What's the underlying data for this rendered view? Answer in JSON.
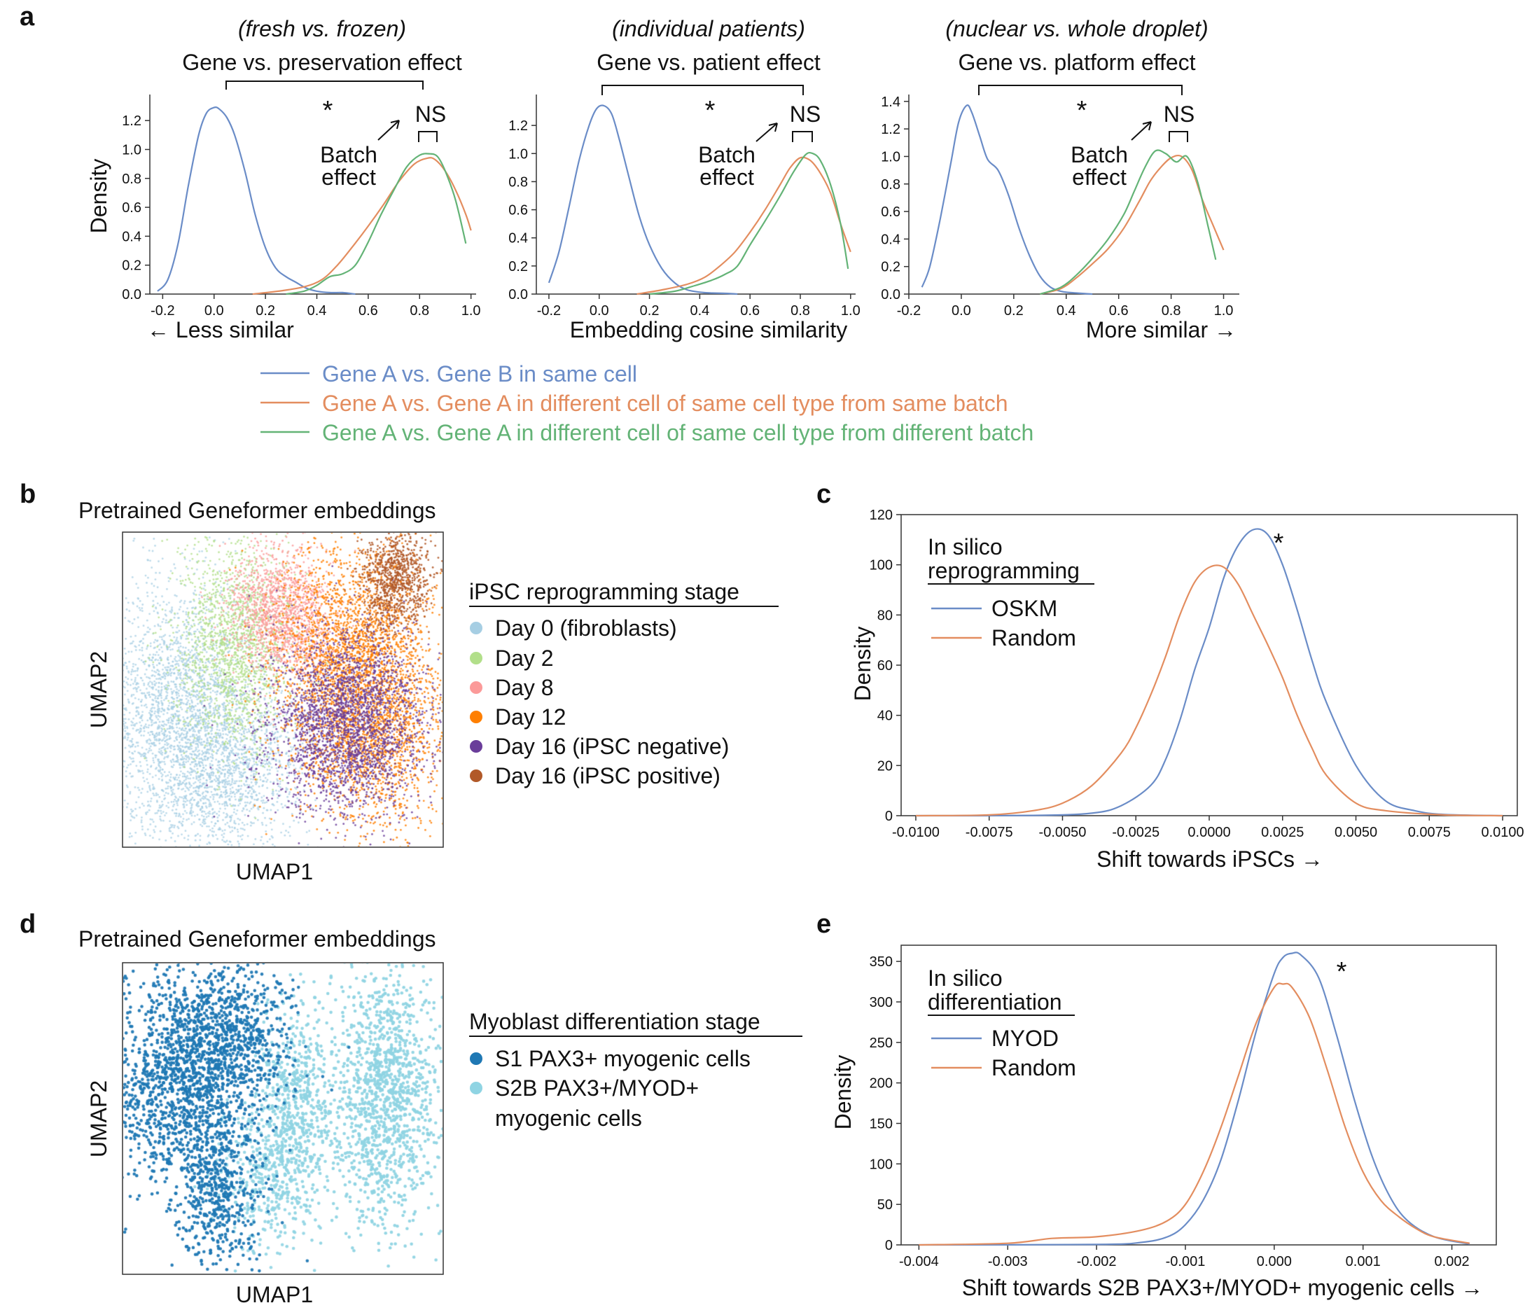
{
  "colors": {
    "blue": "#6a8cc7",
    "orange": "#e38d5f",
    "green": "#63b376",
    "day0": "#a6cee3",
    "day2": "#b2df8a",
    "day8": "#fb9a99",
    "day12": "#ff7f00",
    "day16neg": "#6a3d9a",
    "day16pos": "#b15928",
    "s1": "#1f78b4",
    "s2b": "#8fd4e3"
  },
  "panel_a": {
    "letter": "a",
    "subplots": [
      {
        "subtitle": "(fresh vs. frozen)",
        "title": "Gene vs. preservation effect",
        "xlabel": "← Less similar"
      },
      {
        "subtitle": "(individual patients)",
        "title": "Gene vs. patient effect",
        "xlabel": "Embedding cosine similarity"
      },
      {
        "subtitle": "(nuclear vs. whole droplet)",
        "title": "Gene vs. platform effect",
        "xlabel": "More similar →"
      }
    ],
    "ylabel": "Density",
    "star": "*",
    "ns": "NS",
    "batch_effect_line1": "Batch",
    "batch_effect_line2": "effect",
    "legend": [
      "Gene A vs. Gene B in same cell",
      "Gene A vs. Gene A in different cell of same cell type from same batch",
      "Gene A vs. Gene A in different cell of same cell type from different batch"
    ]
  },
  "panel_b": {
    "letter": "b",
    "title": "Pretrained Geneformer embeddings",
    "xlabel": "UMAP1",
    "ylabel": "UMAP2",
    "legend_title": "iPSC reprogramming stage",
    "legend": [
      "Day 0 (fibroblasts)",
      "Day 2",
      "Day 8",
      "Day 12",
      "Day 16 (iPSC negative)",
      "Day 16 (iPSC positive)"
    ]
  },
  "panel_c": {
    "letter": "c",
    "legend_title_line1": "In silico",
    "legend_title_line2": "reprogramming",
    "legend": [
      "OSKM",
      "Random"
    ],
    "xlabel": "Shift towards iPSCs →",
    "ylabel": "Density",
    "star": "*"
  },
  "panel_d": {
    "letter": "d",
    "title": "Pretrained Geneformer embeddings",
    "xlabel": "UMAP1",
    "ylabel": "UMAP2",
    "legend_title": "Myoblast differentiation stage",
    "legend_line1": "S1 PAX3+ myogenic cells",
    "legend_line2": "S2B PAX3+/MYOD+",
    "legend_line3": "myogenic cells"
  },
  "panel_e": {
    "letter": "e",
    "legend_title_line1": "In silico",
    "legend_title_line2": "differentiation",
    "legend": [
      "MYOD",
      "Random"
    ],
    "xlabel": "Shift towards S2B PAX3+/MYOD+ myogenic cells →",
    "ylabel": "Density",
    "star": "*"
  },
  "chart_data": [
    {
      "type": "line",
      "panel": "a1",
      "xlim": [
        -0.25,
        1.02
      ],
      "ylim": [
        0,
        1.38
      ],
      "xticks": [
        -0.2,
        0.0,
        0.2,
        0.4,
        0.6,
        0.8,
        1.0
      ],
      "xtick_labels": [
        "-0.2",
        "0.0",
        "0.2",
        "0.4",
        "0.6",
        "0.8",
        "1.0"
      ],
      "yticks": [
        0,
        0.2,
        0.4,
        0.6,
        0.8,
        1.0,
        1.2
      ],
      "ytick_labels": [
        "0.0",
        "0.2",
        "0.4",
        "0.6",
        "0.8",
        "1.0",
        "1.2"
      ],
      "series": [
        {
          "name": "Gene A vs. Gene B in same cell",
          "color": "blue",
          "x": [
            -0.22,
            -0.18,
            -0.14,
            -0.1,
            -0.06,
            -0.03,
            0.0,
            0.02,
            0.05,
            0.08,
            0.12,
            0.16,
            0.2,
            0.24,
            0.28,
            0.32,
            0.36,
            0.4,
            0.45,
            0.5,
            0.55
          ],
          "y": [
            0.02,
            0.1,
            0.35,
            0.75,
            1.1,
            1.25,
            1.29,
            1.28,
            1.22,
            1.1,
            0.85,
            0.55,
            0.32,
            0.18,
            0.12,
            0.08,
            0.04,
            0.02,
            0.01,
            0.01,
            0.0
          ]
        },
        {
          "name": "Gene A vs. Gene A in different cell of same cell type from same batch",
          "color": "orange",
          "x": [
            0.15,
            0.25,
            0.35,
            0.42,
            0.48,
            0.54,
            0.6,
            0.66,
            0.72,
            0.78,
            0.83,
            0.86,
            0.9,
            0.94,
            0.98,
            1.0
          ],
          "y": [
            0.0,
            0.02,
            0.05,
            0.1,
            0.2,
            0.33,
            0.47,
            0.62,
            0.78,
            0.9,
            0.94,
            0.93,
            0.85,
            0.72,
            0.55,
            0.44
          ]
        },
        {
          "name": "Gene A vs. Gene A in different cell of same cell type from different batch",
          "color": "green",
          "x": [
            0.28,
            0.35,
            0.4,
            0.45,
            0.5,
            0.55,
            0.6,
            0.65,
            0.7,
            0.75,
            0.8,
            0.84,
            0.87,
            0.9,
            0.94,
            0.98
          ],
          "y": [
            0.0,
            0.02,
            0.06,
            0.12,
            0.14,
            0.2,
            0.36,
            0.55,
            0.72,
            0.88,
            0.96,
            0.97,
            0.95,
            0.85,
            0.65,
            0.35
          ]
        }
      ]
    },
    {
      "type": "line",
      "panel": "a2",
      "xlim": [
        -0.25,
        1.02
      ],
      "ylim": [
        0,
        1.42
      ],
      "xticks": [
        -0.2,
        0.0,
        0.2,
        0.4,
        0.6,
        0.8,
        1.0
      ],
      "xtick_labels": [
        "-0.2",
        "0.0",
        "0.2",
        "0.4",
        "0.6",
        "0.8",
        "1.0"
      ],
      "yticks": [
        0,
        0.2,
        0.4,
        0.6,
        0.8,
        1.0,
        1.2
      ],
      "ytick_labels": [
        "0.0",
        "0.2",
        "0.4",
        "0.6",
        "0.8",
        "1.0",
        "1.2"
      ],
      "series": [
        {
          "name": "Gene A vs. Gene B in same cell",
          "color": "blue",
          "x": [
            -0.2,
            -0.16,
            -0.12,
            -0.08,
            -0.04,
            -0.01,
            0.02,
            0.05,
            0.08,
            0.12,
            0.16,
            0.2,
            0.25,
            0.3,
            0.35,
            0.42,
            0.5,
            0.55
          ],
          "y": [
            0.08,
            0.3,
            0.62,
            0.95,
            1.2,
            1.32,
            1.34,
            1.28,
            1.1,
            0.82,
            0.55,
            0.35,
            0.18,
            0.08,
            0.03,
            0.01,
            0.005,
            0.0
          ]
        },
        {
          "name": "Gene A vs. Gene A in different cell of same cell type from same batch",
          "color": "orange",
          "x": [
            0.15,
            0.25,
            0.35,
            0.42,
            0.48,
            0.54,
            0.6,
            0.66,
            0.72,
            0.76,
            0.8,
            0.84,
            0.88,
            0.92,
            0.96,
            1.0
          ],
          "y": [
            0.0,
            0.03,
            0.07,
            0.12,
            0.2,
            0.3,
            0.44,
            0.6,
            0.78,
            0.9,
            0.97,
            0.95,
            0.86,
            0.72,
            0.5,
            0.3
          ]
        },
        {
          "name": "Gene A vs. Gene A in different cell of same cell type from different batch",
          "color": "green",
          "x": [
            0.2,
            0.3,
            0.38,
            0.45,
            0.5,
            0.55,
            0.6,
            0.66,
            0.72,
            0.77,
            0.82,
            0.85,
            0.88,
            0.92,
            0.96,
            0.99
          ],
          "y": [
            0.0,
            0.02,
            0.06,
            0.1,
            0.14,
            0.2,
            0.35,
            0.52,
            0.7,
            0.86,
            0.99,
            1.0,
            0.95,
            0.78,
            0.5,
            0.18
          ]
        }
      ]
    },
    {
      "type": "line",
      "panel": "a3",
      "xlim": [
        -0.2,
        1.06
      ],
      "ylim": [
        0,
        1.45
      ],
      "xticks": [
        -0.2,
        0.0,
        0.2,
        0.4,
        0.6,
        0.8,
        1.0
      ],
      "xtick_labels": [
        "-0.2",
        "0.0",
        "0.2",
        "0.4",
        "0.6",
        "0.8",
        "1.0"
      ],
      "yticks": [
        0,
        0.2,
        0.4,
        0.6,
        0.8,
        1.0,
        1.2,
        1.4
      ],
      "ytick_labels": [
        "0.0",
        "0.2",
        "0.4",
        "0.6",
        "0.8",
        "1.0",
        "1.2",
        "1.4"
      ],
      "series": [
        {
          "name": "Gene A vs. Gene B in same cell",
          "color": "blue",
          "x": [
            -0.15,
            -0.12,
            -0.08,
            -0.04,
            -0.01,
            0.02,
            0.04,
            0.07,
            0.1,
            0.14,
            0.18,
            0.22,
            0.26,
            0.3,
            0.34,
            0.38,
            0.42,
            0.5
          ],
          "y": [
            0.05,
            0.2,
            0.55,
            0.95,
            1.25,
            1.37,
            1.32,
            1.15,
            0.98,
            0.9,
            0.72,
            0.48,
            0.28,
            0.13,
            0.05,
            0.02,
            0.01,
            0.0
          ]
        },
        {
          "name": "Gene A vs. Gene A in different cell of same cell type from same batch",
          "color": "orange",
          "x": [
            0.3,
            0.38,
            0.44,
            0.5,
            0.56,
            0.62,
            0.68,
            0.72,
            0.76,
            0.8,
            0.84,
            0.88,
            0.92,
            0.96,
            1.0
          ],
          "y": [
            0.0,
            0.04,
            0.12,
            0.22,
            0.33,
            0.48,
            0.68,
            0.82,
            0.92,
            0.99,
            1.0,
            0.9,
            0.68,
            0.5,
            0.32
          ]
        },
        {
          "name": "Gene A vs. Gene A in different cell of same cell type from different batch",
          "color": "green",
          "x": [
            0.3,
            0.38,
            0.44,
            0.5,
            0.56,
            0.62,
            0.66,
            0.7,
            0.74,
            0.78,
            0.82,
            0.86,
            0.9,
            0.94,
            0.97
          ],
          "y": [
            0.0,
            0.05,
            0.14,
            0.26,
            0.4,
            0.58,
            0.75,
            0.92,
            1.04,
            1.02,
            0.96,
            1.0,
            0.82,
            0.5,
            0.25
          ]
        }
      ]
    },
    {
      "type": "line",
      "panel": "c",
      "xlim": [
        -0.0105,
        0.0105
      ],
      "ylim": [
        0,
        120
      ],
      "xticks": [
        -0.01,
        -0.0075,
        -0.005,
        -0.0025,
        0.0,
        0.0025,
        0.005,
        0.0075,
        0.01
      ],
      "xtick_labels": [
        "-0.0100",
        "-0.0075",
        "-0.0050",
        "-0.0025",
        "0.0000",
        "0.0025",
        "0.0050",
        "0.0075",
        "0.0100"
      ],
      "yticks": [
        0,
        20,
        40,
        60,
        80,
        100,
        120
      ],
      "ytick_labels": [
        "0",
        "20",
        "40",
        "60",
        "80",
        "100",
        "120"
      ],
      "series": [
        {
          "name": "OSKM",
          "color": "blue",
          "x": [
            -0.01,
            -0.006,
            -0.004,
            -0.003,
            -0.002,
            -0.0015,
            -0.001,
            -0.0005,
            0.0,
            0.0005,
            0.001,
            0.0015,
            0.002,
            0.0025,
            0.003,
            0.0035,
            0.004,
            0.005,
            0.006,
            0.007,
            0.008,
            0.01
          ],
          "y": [
            0,
            0.1,
            1,
            4,
            12,
            22,
            38,
            58,
            75,
            95,
            108,
            114,
            112,
            100,
            82,
            62,
            45,
            20,
            6,
            2,
            0.5,
            0
          ]
        },
        {
          "name": "Random",
          "color": "orange",
          "x": [
            -0.01,
            -0.0075,
            -0.006,
            -0.005,
            -0.004,
            -0.003,
            -0.0025,
            -0.002,
            -0.0015,
            -0.001,
            -0.0005,
            0.0,
            0.0005,
            0.001,
            0.0015,
            0.002,
            0.0025,
            0.003,
            0.0035,
            0.004,
            0.005,
            0.006,
            0.008,
            0.01
          ],
          "y": [
            0,
            0.3,
            2,
            5,
            12,
            25,
            35,
            48,
            63,
            80,
            93,
            99,
            99,
            92,
            80,
            68,
            55,
            40,
            27,
            16,
            5,
            2,
            0.3,
            0
          ]
        }
      ]
    },
    {
      "type": "line",
      "panel": "e",
      "xlim": [
        -0.0042,
        0.0025
      ],
      "ylim": [
        0,
        370
      ],
      "xticks": [
        -0.004,
        -0.003,
        -0.002,
        -0.001,
        0.0,
        0.001,
        0.002
      ],
      "xtick_labels": [
        "-0.004",
        "-0.003",
        "-0.002",
        "-0.001",
        "0.000",
        "0.001",
        "0.002"
      ],
      "yticks": [
        0,
        50,
        100,
        150,
        200,
        250,
        300,
        350
      ],
      "ytick_labels": [
        "0",
        "50",
        "100",
        "150",
        "200",
        "250",
        "300",
        "350"
      ],
      "series": [
        {
          "name": "MYOD",
          "color": "blue",
          "x": [
            -0.004,
            -0.002,
            -0.0015,
            -0.0012,
            -0.001,
            -0.0008,
            -0.0006,
            -0.0004,
            -0.0002,
            0.0,
            0.0001,
            0.0002,
            0.0003,
            0.0005,
            0.0007,
            0.0009,
            0.0011,
            0.0013,
            0.0015,
            0.0018,
            0.0022
          ],
          "y": [
            0,
            0.5,
            3,
            10,
            25,
            55,
            105,
            180,
            265,
            335,
            355,
            360,
            358,
            330,
            260,
            180,
            110,
            60,
            30,
            10,
            1
          ]
        },
        {
          "name": "Random",
          "color": "orange",
          "x": [
            -0.004,
            -0.003,
            -0.0025,
            -0.002,
            -0.0015,
            -0.0012,
            -0.001,
            -0.0008,
            -0.0006,
            -0.0004,
            -0.0002,
            0.0,
            0.0001,
            0.0002,
            0.0004,
            0.0006,
            0.0008,
            0.001,
            0.0012,
            0.0014,
            0.0016,
            0.0018,
            0.0022
          ],
          "y": [
            0,
            2,
            8,
            10,
            18,
            30,
            50,
            90,
            145,
            210,
            275,
            318,
            322,
            318,
            280,
            215,
            145,
            90,
            55,
            35,
            20,
            10,
            2
          ]
        }
      ]
    }
  ]
}
